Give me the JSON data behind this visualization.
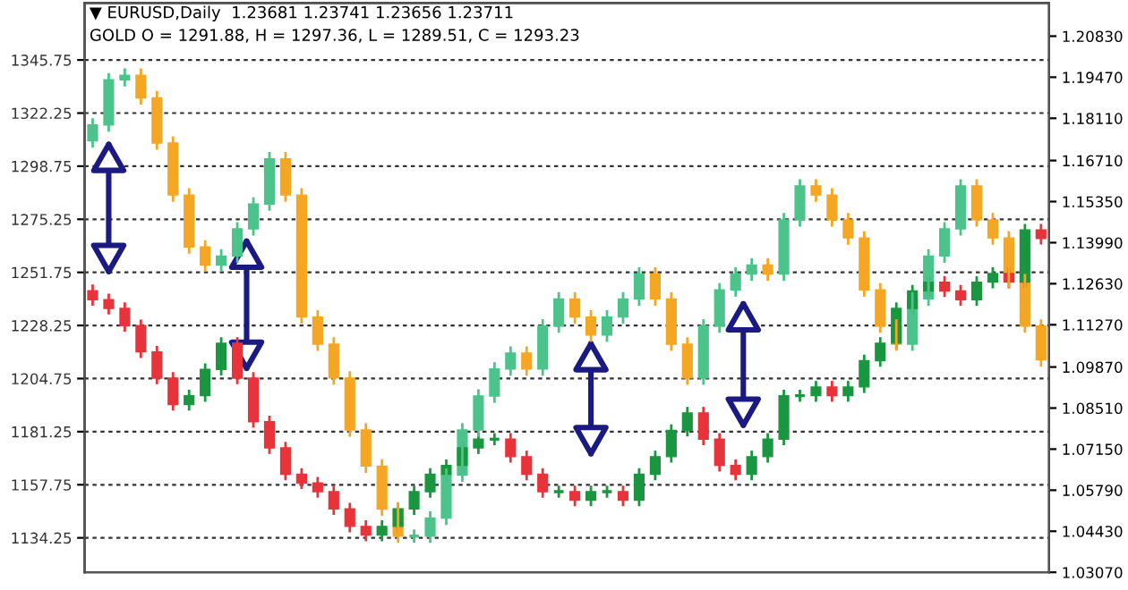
{
  "chart_data": {
    "type": "candlestick",
    "title": "▼ EURUSD,Daily  1.23681 1.23741 1.23656 1.23711",
    "subtitle": "GOLD O = 1291.88, H = 1297.36, L = 1289.51, C = 1293.23",
    "categories": [
      null,
      null,
      null,
      null,
      null,
      null,
      null,
      null,
      null,
      null,
      null,
      null,
      null,
      null,
      null,
      null,
      null,
      null,
      null,
      null,
      null,
      null,
      null,
      null,
      null,
      null,
      null,
      null,
      null,
      null,
      null,
      null,
      null,
      null,
      null,
      null,
      null,
      null,
      null,
      null,
      null,
      null,
      null,
      null,
      null,
      null,
      null,
      null,
      null,
      null,
      null,
      null,
      null,
      null,
      null,
      null,
      null,
      null,
      null,
      null
    ],
    "ylim": [
      1119,
      1371
    ],
    "yticks": [
      1134.25,
      1157.75,
      1181.25,
      1204.75,
      1228.25,
      1251.75,
      1275.25,
      1298.75,
      1322.25,
      1345.75
    ],
    "y2lim": [
      1.0307,
      1.2193
    ],
    "y2ticks": [
      {
        "value": 1.0307,
        "label": "1.03070"
      },
      {
        "value": 1.0443,
        "label": "1.04430"
      },
      {
        "value": 1.0579,
        "label": "1.05790"
      },
      {
        "value": 1.0715,
        "label": "1.07150"
      },
      {
        "value": 1.0851,
        "label": "1.08510"
      },
      {
        "value": 1.0987,
        "label": "1.09870"
      },
      {
        "value": 1.1127,
        "label": "1.11270"
      },
      {
        "value": 1.1263,
        "label": "1.12630"
      },
      {
        "value": 1.1399,
        "label": "1.13990"
      },
      {
        "value": 1.1535,
        "label": "1.15350"
      },
      {
        "value": 1.1671,
        "label": "1.16710"
      },
      {
        "value": 1.1811,
        "label": "1.18110"
      },
      {
        "value": 1.1947,
        "label": "1.19470"
      },
      {
        "value": 1.2083,
        "label": "1.20830"
      }
    ],
    "grid": "y",
    "tick_labels": "y",
    "series": [
      {
        "axis": "y",
        "ohlc": [
          [
            1310,
            1320,
            1307,
            1317
          ],
          [
            1317,
            1340,
            1314,
            1337
          ],
          [
            1337,
            1342,
            1334,
            1339
          ],
          [
            1339,
            1342,
            1326,
            1329
          ],
          [
            1329,
            1332,
            1306,
            1309
          ],
          [
            1309,
            1312,
            1283,
            1286
          ],
          [
            1286,
            1289,
            1260,
            1263
          ],
          [
            1263,
            1266,
            1252,
            1255
          ],
          [
            1255,
            1262,
            1252,
            1259
          ],
          [
            1259,
            1274,
            1256,
            1271
          ],
          [
            1271,
            1285,
            1268,
            1282
          ],
          [
            1282,
            1305,
            1279,
            1302
          ],
          [
            1302,
            1305,
            1283,
            1286
          ],
          [
            1286,
            1289,
            1229,
            1232
          ],
          [
            1232,
            1235,
            1217,
            1220
          ],
          [
            1220,
            1223,
            1202,
            1205
          ],
          [
            1205,
            1208,
            1179,
            1182
          ],
          [
            1182,
            1185,
            1163,
            1166
          ],
          [
            1166,
            1169,
            1144,
            1147
          ],
          [
            1147,
            1150,
            1132,
            1135
          ],
          [
            1135,
            1138,
            1132,
            1135
          ],
          [
            1135,
            1146,
            1132,
            1143
          ],
          [
            1143,
            1165,
            1140,
            1162
          ],
          [
            1162,
            1185,
            1159,
            1182
          ],
          [
            1182,
            1200,
            1179,
            1197
          ],
          [
            1197,
            1212,
            1194,
            1209
          ],
          [
            1209,
            1219,
            1206,
            1216
          ],
          [
            1216,
            1219,
            1206,
            1209
          ],
          [
            1209,
            1231,
            1206,
            1228
          ],
          [
            1228,
            1243,
            1225,
            1240
          ],
          [
            1240,
            1243,
            1229,
            1232
          ],
          [
            1232,
            1235,
            1221,
            1224
          ],
          [
            1224,
            1235,
            1221,
            1232
          ],
          [
            1232,
            1243,
            1229,
            1240
          ],
          [
            1240,
            1254,
            1237,
            1251
          ],
          [
            1251,
            1254,
            1237,
            1240
          ],
          [
            1240,
            1243,
            1217,
            1220
          ],
          [
            1220,
            1223,
            1202,
            1205
          ],
          [
            1205,
            1231,
            1202,
            1228
          ],
          [
            1228,
            1247,
            1225,
            1244
          ],
          [
            1244,
            1254,
            1241,
            1251
          ],
          [
            1251,
            1258,
            1248,
            1255
          ],
          [
            1255,
            1258,
            1248,
            1251
          ],
          [
            1251,
            1278,
            1248,
            1275
          ],
          [
            1275,
            1293,
            1272,
            1290
          ],
          [
            1290,
            1293,
            1283,
            1286
          ],
          [
            1286,
            1289,
            1272,
            1275
          ],
          [
            1275,
            1278,
            1264,
            1267
          ],
          [
            1267,
            1270,
            1241,
            1244
          ],
          [
            1244,
            1247,
            1225,
            1228
          ],
          [
            1228,
            1231,
            1217,
            1220
          ],
          [
            1220,
            1243,
            1217,
            1240
          ],
          [
            1240,
            1262,
            1237,
            1259
          ],
          [
            1259,
            1274,
            1256,
            1271
          ],
          [
            1271,
            1293,
            1268,
            1290
          ],
          [
            1290,
            1293,
            1272,
            1275
          ],
          [
            1275,
            1278,
            1264,
            1267
          ],
          [
            1267,
            1270,
            1245,
            1248
          ],
          [
            1248,
            1251,
            1225,
            1228
          ],
          [
            1228,
            1231,
            1210,
            1213
          ]
        ],
        "colors": [
          "#4cc38a",
          "#4cc38a",
          "#4cc38a",
          "#f5a623",
          "#f5a623",
          "#f5a623",
          "#f5a623",
          "#f5a623",
          "#4cc38a",
          "#4cc38a",
          "#4cc38a",
          "#4cc38a",
          "#f5a623",
          "#f5a623",
          "#f5a623",
          "#f5a623",
          "#f5a623",
          "#f5a623",
          "#f5a623",
          "#f5a623",
          "#4cc38a",
          "#4cc38a",
          "#4cc38a",
          "#4cc38a",
          "#4cc38a",
          "#4cc38a",
          "#4cc38a",
          "#f5a623",
          "#4cc38a",
          "#4cc38a",
          "#f5a623",
          "#f5a623",
          "#4cc38a",
          "#4cc38a",
          "#4cc38a",
          "#f5a623",
          "#f5a623",
          "#f5a623",
          "#4cc38a",
          "#4cc38a",
          "#4cc38a",
          "#4cc38a",
          "#f5a623",
          "#4cc38a",
          "#4cc38a",
          "#f5a623",
          "#f5a623",
          "#f5a623",
          "#f5a623",
          "#f5a623",
          "#f5a623",
          "#4cc38a",
          "#4cc38a",
          "#4cc38a",
          "#4cc38a",
          "#f5a623",
          "#f5a623",
          "#f5a623",
          "#f5a623",
          "#f5a623"
        ]
      },
      {
        "axis": "y2",
        "ohlc": [
          [
            1.124,
            1.126,
            1.119,
            1.121
          ],
          [
            1.121,
            1.123,
            1.1161,
            1.1181
          ],
          [
            1.1181,
            1.1201,
            1.1104,
            1.1124
          ],
          [
            1.1124,
            1.1144,
            1.1017,
            1.1037
          ],
          [
            1.1037,
            1.1057,
            1.093,
            1.095
          ],
          [
            1.095,
            1.097,
            1.0843,
            1.0863
          ],
          [
            1.0863,
            1.0912,
            1.0843,
            1.0892
          ],
          [
            1.0892,
            1.0999,
            1.0872,
            1.0979
          ],
          [
            1.0979,
            1.1086,
            1.0959,
            1.1066
          ],
          [
            1.1066,
            1.1086,
            1.093,
            1.095
          ],
          [
            1.095,
            1.097,
            1.0786,
            1.0806
          ],
          [
            1.0806,
            1.0826,
            1.0699,
            1.0719
          ],
          [
            1.0719,
            1.0739,
            1.0612,
            1.0632
          ],
          [
            1.0632,
            1.0652,
            1.0583,
            1.0603
          ],
          [
            1.0603,
            1.0623,
            1.0554,
            1.0574
          ],
          [
            1.0574,
            1.0594,
            1.0497,
            1.0517
          ],
          [
            1.0517,
            1.0537,
            1.0439,
            1.0459
          ],
          [
            1.0459,
            1.0479,
            1.041,
            1.043
          ],
          [
            1.043,
            1.0479,
            1.041,
            1.0459
          ],
          [
            1.0459,
            1.0537,
            1.0439,
            1.0517
          ],
          [
            1.0517,
            1.0594,
            1.0497,
            1.0574
          ],
          [
            1.0574,
            1.0652,
            1.0554,
            1.0632
          ],
          [
            1.0632,
            1.0681,
            1.0612,
            1.0661
          ],
          [
            1.0661,
            1.0739,
            1.0641,
            1.0719
          ],
          [
            1.0719,
            1.0768,
            1.0699,
            1.0748
          ],
          [
            1.0748,
            1.0768,
            1.0728,
            1.0748
          ],
          [
            1.0748,
            1.0768,
            1.067,
            1.069
          ],
          [
            1.069,
            1.071,
            1.0612,
            1.0632
          ],
          [
            1.0632,
            1.0652,
            1.0554,
            1.0574
          ],
          [
            1.0574,
            1.0594,
            1.0554,
            1.0574
          ],
          [
            1.0574,
            1.0594,
            1.0526,
            1.0546
          ],
          [
            1.0546,
            1.0594,
            1.0526,
            1.0574
          ],
          [
            1.0574,
            1.0594,
            1.0554,
            1.0574
          ],
          [
            1.0574,
            1.0594,
            1.0526,
            1.0546
          ],
          [
            1.0546,
            1.0652,
            1.0526,
            1.0632
          ],
          [
            1.0632,
            1.071,
            1.0612,
            1.069
          ],
          [
            1.069,
            1.0797,
            1.067,
            1.0777
          ],
          [
            1.0777,
            1.0855,
            1.0757,
            1.0835
          ],
          [
            1.0835,
            1.0855,
            1.0728,
            1.0748
          ],
          [
            1.0748,
            1.0768,
            1.0641,
            1.0661
          ],
          [
            1.0661,
            1.0681,
            1.0612,
            1.0632
          ],
          [
            1.0632,
            1.071,
            1.0612,
            1.069
          ],
          [
            1.069,
            1.0768,
            1.067,
            1.0748
          ],
          [
            1.0748,
            1.0912,
            1.0728,
            1.0892
          ],
          [
            1.0892,
            1.0912,
            1.0872,
            1.0892
          ],
          [
            1.0892,
            1.0941,
            1.0872,
            1.0921
          ],
          [
            1.0921,
            1.0941,
            1.0872,
            1.0892
          ],
          [
            1.0892,
            1.0941,
            1.0872,
            1.0921
          ],
          [
            1.0921,
            1.1028,
            1.0901,
            1.1008
          ],
          [
            1.1008,
            1.1086,
            1.0988,
            1.1066
          ],
          [
            1.1066,
            1.1201,
            1.1046,
            1.1181
          ],
          [
            1.1181,
            1.1259,
            1.1161,
            1.1239
          ],
          [
            1.1239,
            1.1288,
            1.1219,
            1.1268
          ],
          [
            1.1268,
            1.1288,
            1.1219,
            1.1239
          ],
          [
            1.1239,
            1.1259,
            1.119,
            1.121
          ],
          [
            1.121,
            1.1288,
            1.119,
            1.1268
          ],
          [
            1.1268,
            1.1317,
            1.1248,
            1.1297
          ],
          [
            1.1297,
            1.1317,
            1.1248,
            1.1268
          ],
          [
            1.1268,
            1.1461,
            1.1248,
            1.1441
          ],
          [
            1.1441,
            1.1461,
            1.1393,
            1.1413
          ]
        ],
        "colors": [
          "#e8333a",
          "#e8333a",
          "#e8333a",
          "#e8333a",
          "#e8333a",
          "#e8333a",
          "#1a9641",
          "#1a9641",
          "#1a9641",
          "#e8333a",
          "#e8333a",
          "#e8333a",
          "#e8333a",
          "#e8333a",
          "#e8333a",
          "#e8333a",
          "#e8333a",
          "#e8333a",
          "#1a9641",
          "#1a9641",
          "#1a9641",
          "#1a9641",
          "#1a9641",
          "#1a9641",
          "#1a9641",
          "#1a9641",
          "#e8333a",
          "#e8333a",
          "#e8333a",
          "#1a9641",
          "#e8333a",
          "#1a9641",
          "#1a9641",
          "#e8333a",
          "#1a9641",
          "#1a9641",
          "#1a9641",
          "#1a9641",
          "#e8333a",
          "#e8333a",
          "#e8333a",
          "#1a9641",
          "#1a9641",
          "#1a9641",
          "#1a9641",
          "#1a9641",
          "#e8333a",
          "#1a9641",
          "#1a9641",
          "#1a9641",
          "#1a9641",
          "#1a9641",
          "#1a9641",
          "#e8333a",
          "#e8333a",
          "#1a9641",
          "#1a9641",
          "#e8333a",
          "#1a9641",
          "#e8333a"
        ]
      }
    ]
  }
}
